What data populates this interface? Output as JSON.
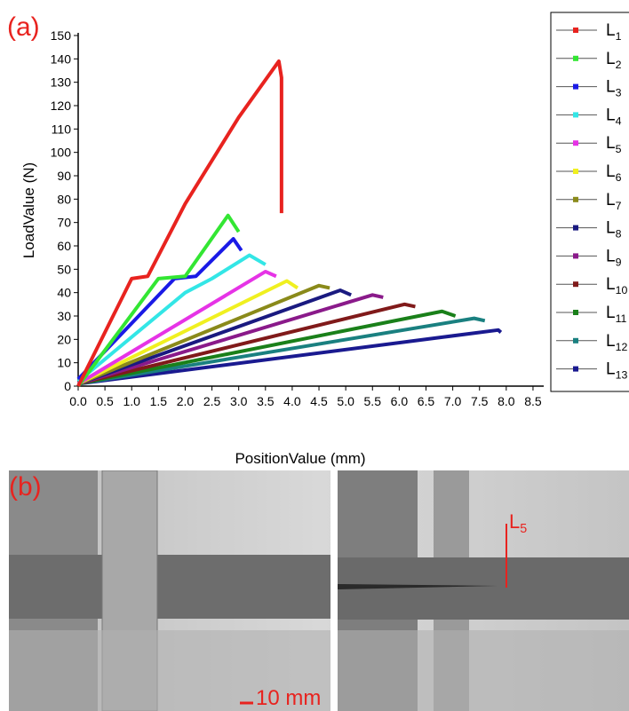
{
  "chart_data": {
    "type": "line",
    "panel_label": "(a)",
    "x_label": "PositionValue (mm)",
    "y_label": "LoadValue (N)",
    "xlim": [
      0,
      8.7
    ],
    "ylim": [
      0,
      150
    ],
    "xticks": [
      {
        "value": 0,
        "label": "0.0"
      },
      0.5,
      {
        "value": 1,
        "label": "1.0"
      },
      1.5,
      {
        "value": 2,
        "label": "2.0"
      },
      2.5,
      {
        "value": 3,
        "label": "3.0"
      },
      3.5,
      {
        "value": 4,
        "label": "4.0"
      },
      4.5,
      {
        "value": 5,
        "label": "5.0"
      },
      5.5,
      {
        "value": 6,
        "label": "6.0"
      },
      6.5,
      {
        "value": 7,
        "label": "7.0"
      },
      7.5,
      {
        "value": 8,
        "label": "8.0"
      },
      8.5
    ],
    "yticks": [
      0,
      10,
      20,
      30,
      40,
      50,
      60,
      70,
      80,
      90,
      100,
      110,
      120,
      130,
      140,
      150
    ],
    "grid": false,
    "legend": "right",
    "series": [
      {
        "name": "L1",
        "color": "#e8231f",
        "x": [
          0,
          1.0,
          1.3,
          2.0,
          3.0,
          3.75,
          3.8,
          3.8,
          3.8,
          3.8
        ],
        "values": [
          0,
          46,
          47,
          78,
          115,
          139,
          132,
          111,
          78,
          74
        ]
      },
      {
        "name": "L2",
        "color": "#33e633",
        "x": [
          0,
          1.5,
          2.0,
          2.8,
          3.0
        ],
        "values": [
          0,
          46,
          47,
          73,
          66
        ]
      },
      {
        "name": "L3",
        "color": "#1a1ae6",
        "x": [
          0,
          1.8,
          2.2,
          2.9,
          3.05
        ],
        "values": [
          3,
          46,
          47,
          63,
          58
        ]
      },
      {
        "name": "L4",
        "color": "#33e6e6",
        "x": [
          0,
          2.0,
          2.5,
          3.2,
          3.5
        ],
        "values": [
          2,
          40,
          46,
          56,
          52
        ]
      },
      {
        "name": "L5",
        "color": "#e633e6",
        "x": [
          0,
          3.5,
          3.7
        ],
        "values": [
          1,
          49,
          47
        ]
      },
      {
        "name": "L6",
        "color": "#f0f020",
        "x": [
          0,
          3.9,
          4.1
        ],
        "values": [
          1,
          45,
          42
        ]
      },
      {
        "name": "L7",
        "color": "#8a8a1a",
        "x": [
          0,
          4.5,
          4.7
        ],
        "values": [
          1,
          43,
          42
        ]
      },
      {
        "name": "L8",
        "color": "#1a1a80",
        "x": [
          0,
          4.9,
          5.1
        ],
        "values": [
          1,
          41,
          39
        ]
      },
      {
        "name": "L9",
        "color": "#8a1a8a",
        "x": [
          0,
          5.5,
          5.7
        ],
        "values": [
          1,
          39,
          38
        ]
      },
      {
        "name": "L10",
        "color": "#801a1a",
        "x": [
          0,
          6.1,
          6.3
        ],
        "values": [
          1,
          35,
          34
        ]
      },
      {
        "name": "L11",
        "color": "#1a801a",
        "x": [
          0,
          6.8,
          7.05
        ],
        "values": [
          1,
          32,
          30
        ]
      },
      {
        "name": "L12",
        "color": "#1a8080",
        "x": [
          0,
          7.4,
          7.6
        ],
        "values": [
          1,
          29,
          28
        ]
      },
      {
        "name": "L13",
        "color": "#1a1a90",
        "x": [
          0,
          7.85,
          7.9
        ],
        "values": [
          1,
          24,
          23
        ]
      }
    ]
  },
  "photo": {
    "panel_label": "(b)",
    "scale_bar": "10 mm",
    "marker": "L5"
  }
}
